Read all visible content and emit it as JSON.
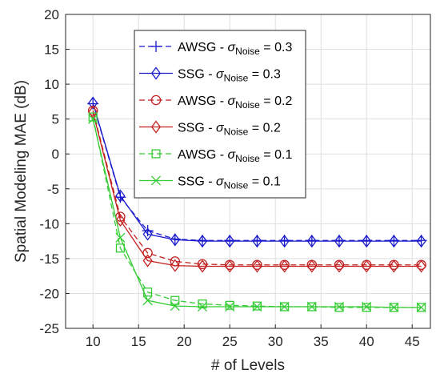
{
  "chart_data": {
    "type": "line",
    "title": "",
    "xlabel": "# of Levels",
    "ylabel": "Spatial Modeling MAE (dB)",
    "xlim": [
      7,
      47
    ],
    "ylim": [
      -25,
      20
    ],
    "xticks": [
      "10",
      "15",
      "20",
      "25",
      "30",
      "35",
      "40",
      "45"
    ],
    "yticks": [
      "20",
      "15",
      "10",
      "5",
      "0",
      "-5",
      "-10",
      "-15",
      "-20",
      "-25"
    ],
    "grid": true,
    "legend_position": "top-right",
    "x": [
      10,
      13,
      16,
      19,
      22,
      25,
      28,
      31,
      34,
      37,
      40,
      43,
      46
    ],
    "series": [
      {
        "name": "AWSG - σNoise = 0.3",
        "label_prefix": "AWSG - ",
        "label_symbol": "σ",
        "label_sub": "Noise",
        "label_suffix": " = 0.3",
        "color": "#1a1acc",
        "dash": "dashed",
        "marker": "plus",
        "values": [
          7.2,
          -6.2,
          -11.0,
          -12.2,
          -12.4,
          -12.4,
          -12.4,
          -12.4,
          -12.4,
          -12.4,
          -12.4,
          -12.4,
          -12.4
        ]
      },
      {
        "name": "SSG - σNoise = 0.3",
        "label_prefix": "SSG - ",
        "label_symbol": "σ",
        "label_sub": "Noise",
        "label_suffix": " = 0.3",
        "color": "#1a1acc",
        "dash": "solid",
        "marker": "diamond",
        "values": [
          7.3,
          -6.0,
          -11.5,
          -12.3,
          -12.5,
          -12.5,
          -12.5,
          -12.5,
          -12.5,
          -12.5,
          -12.5,
          -12.5,
          -12.5
        ]
      },
      {
        "name": "AWSG - σNoise = 0.2",
        "label_prefix": "AWSG - ",
        "label_symbol": "σ",
        "label_sub": "Noise",
        "label_suffix": " = 0.2",
        "color": "#c42020",
        "dash": "dashed",
        "marker": "circle",
        "values": [
          6.2,
          -9.0,
          -14.2,
          -15.4,
          -15.8,
          -15.9,
          -15.9,
          -15.9,
          -15.9,
          -15.9,
          -15.9,
          -15.9,
          -15.9
        ]
      },
      {
        "name": "SSG - σNoise = 0.2",
        "label_prefix": "SSG - ",
        "label_symbol": "σ",
        "label_sub": "Noise",
        "label_suffix": " = 0.2",
        "color": "#c42020",
        "dash": "solid",
        "marker": "diamond",
        "values": [
          6.0,
          -9.5,
          -15.3,
          -16.0,
          -16.1,
          -16.1,
          -16.1,
          -16.1,
          -16.1,
          -16.1,
          -16.1,
          -16.1,
          -16.1
        ]
      },
      {
        "name": "AWSG - σNoise = 0.1",
        "label_prefix": "AWSG - ",
        "label_symbol": "σ",
        "label_sub": "Noise",
        "label_suffix": " = 0.1",
        "color": "#33cc33",
        "dash": "dashed",
        "marker": "square",
        "values": [
          5.3,
          -13.5,
          -19.8,
          -21.0,
          -21.5,
          -21.7,
          -21.8,
          -21.9,
          -21.9,
          -22.0,
          -22.0,
          -22.0,
          -22.0
        ]
      },
      {
        "name": "SSG - σNoise = 0.1",
        "label_prefix": "SSG - ",
        "label_symbol": "σ",
        "label_sub": "Noise",
        "label_suffix": " = 0.1",
        "color": "#33cc33",
        "dash": "solid",
        "marker": "x",
        "values": [
          5.0,
          -12.0,
          -21.0,
          -21.8,
          -21.9,
          -21.9,
          -21.9,
          -21.9,
          -21.9,
          -21.9,
          -21.9,
          -22.0,
          -22.0
        ]
      }
    ]
  }
}
